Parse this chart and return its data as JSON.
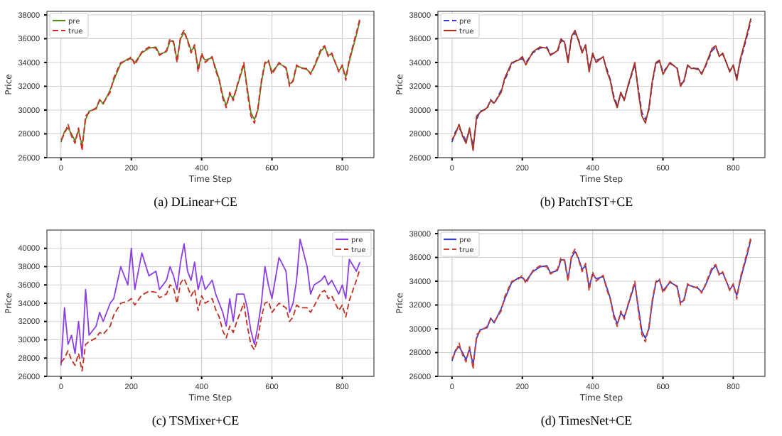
{
  "chart_data": [
    {
      "type": "line",
      "title": "(a) DLinear+CE",
      "xlabel": "Time Step",
      "ylabel": "Price",
      "grid": true,
      "legend": "top left",
      "xlim": [
        -40,
        890
      ],
      "ylim": [
        26000,
        38300
      ],
      "xticks": [
        0,
        200,
        400,
        600,
        800
      ],
      "yticks": [
        26000,
        28000,
        30000,
        32000,
        34000,
        36000,
        38000
      ],
      "x": [
        0,
        10,
        20,
        30,
        40,
        50,
        60,
        70,
        80,
        100,
        110,
        120,
        140,
        150,
        170,
        190,
        200,
        210,
        230,
        250,
        270,
        280,
        300,
        310,
        320,
        330,
        340,
        350,
        360,
        370,
        380,
        390,
        400,
        410,
        430,
        440,
        450,
        460,
        470,
        480,
        490,
        500,
        520,
        530,
        540,
        550,
        560,
        570,
        580,
        590,
        600,
        620,
        640,
        650,
        660,
        670,
        680,
        700,
        710,
        720,
        740,
        750,
        760,
        770,
        790,
        800,
        810,
        820,
        840,
        850
      ],
      "series": [
        {
          "name": "pre",
          "color": "#5a8a1e",
          "line_style": "solid",
          "values": [
            27300,
            28200,
            28500,
            28000,
            27400,
            28300,
            27000,
            29200,
            29900,
            30100,
            30900,
            30500,
            31700,
            32500,
            33900,
            34300,
            34300,
            34000,
            34800,
            35200,
            35300,
            34700,
            34900,
            35800,
            35800,
            34200,
            36000,
            36500,
            35900,
            35000,
            35300,
            33500,
            34600,
            34200,
            34400,
            33500,
            32600,
            31200,
            30400,
            31300,
            31000,
            31900,
            33800,
            31800,
            29800,
            29200,
            30000,
            32300,
            33900,
            34100,
            33200,
            33900,
            33600,
            32200,
            32400,
            33700,
            33600,
            33400,
            33100,
            33600,
            35000,
            35300,
            34600,
            34700,
            33300,
            33700,
            32800,
            34100,
            36300,
            37500
          ]
        },
        {
          "name": "true",
          "color": "#d62728",
          "line_style": "dashed",
          "values": [
            27500,
            28000,
            28800,
            27800,
            27200,
            28500,
            26600,
            29500,
            29800,
            30200,
            30800,
            30600,
            31500,
            32700,
            34000,
            34200,
            34500,
            33800,
            34900,
            35300,
            35200,
            34600,
            35000,
            36000,
            35700,
            34000,
            36200,
            36700,
            35800,
            34800,
            35500,
            33200,
            34800,
            34000,
            34500,
            33300,
            32500,
            31000,
            30200,
            31500,
            30800,
            32000,
            34000,
            31500,
            29500,
            28900,
            30200,
            32500,
            34000,
            34200,
            33000,
            34000,
            33500,
            32000,
            32500,
            33800,
            33500,
            33500,
            33000,
            33700,
            35200,
            35400,
            34500,
            34800,
            33200,
            33800,
            32500,
            34300,
            36500,
            37700
          ]
        }
      ]
    },
    {
      "type": "line",
      "title": "(b) PatchTST+CE",
      "xlabel": "Time Step",
      "ylabel": "Price",
      "grid": true,
      "legend": "top left",
      "xlim": [
        -40,
        890
      ],
      "ylim": [
        26000,
        38300
      ],
      "xticks": [
        0,
        200,
        400,
        600,
        800
      ],
      "yticks": [
        26000,
        28000,
        30000,
        32000,
        34000,
        36000,
        38000
      ],
      "x": [
        0,
        10,
        20,
        30,
        40,
        50,
        60,
        70,
        80,
        100,
        110,
        120,
        140,
        150,
        170,
        190,
        200,
        210,
        230,
        250,
        270,
        280,
        300,
        310,
        320,
        330,
        340,
        350,
        360,
        370,
        380,
        390,
        400,
        410,
        430,
        440,
        450,
        460,
        470,
        480,
        490,
        500,
        520,
        530,
        540,
        550,
        560,
        570,
        580,
        590,
        600,
        620,
        640,
        650,
        660,
        670,
        680,
        700,
        710,
        720,
        740,
        750,
        760,
        770,
        790,
        800,
        810,
        820,
        840,
        850
      ],
      "series": [
        {
          "name": "pre",
          "color": "#3a3ad0",
          "line_style": "dashed",
          "values": [
            27300,
            28200,
            28500,
            28000,
            27400,
            28300,
            27000,
            29200,
            29900,
            30100,
            30900,
            30500,
            31700,
            32500,
            33900,
            34300,
            34300,
            34000,
            34800,
            35200,
            35300,
            34700,
            34900,
            35800,
            35800,
            34200,
            36000,
            36500,
            35900,
            35000,
            35300,
            33500,
            34600,
            34200,
            34400,
            33500,
            32600,
            31200,
            30400,
            31300,
            31000,
            31900,
            33800,
            31800,
            29800,
            29200,
            30000,
            32300,
            33900,
            34100,
            33200,
            33900,
            33600,
            32200,
            32400,
            33700,
            33600,
            33400,
            33100,
            33600,
            35000,
            35300,
            34600,
            34700,
            33300,
            33700,
            32800,
            34100,
            36300,
            37500
          ]
        },
        {
          "name": "true",
          "color": "#a8321e",
          "line_style": "solid",
          "values": [
            27500,
            28000,
            28800,
            27800,
            27200,
            28500,
            26600,
            29500,
            29800,
            30200,
            30800,
            30600,
            31500,
            32700,
            34000,
            34200,
            34500,
            33800,
            34900,
            35300,
            35200,
            34600,
            35000,
            36000,
            35700,
            34000,
            36200,
            36700,
            35800,
            34800,
            35500,
            33200,
            34800,
            34000,
            34500,
            33300,
            32500,
            31000,
            30200,
            31500,
            30800,
            32000,
            34000,
            31500,
            29500,
            28900,
            30200,
            32500,
            34000,
            34200,
            33000,
            34000,
            33500,
            32000,
            32500,
            33800,
            33500,
            33500,
            33000,
            33700,
            35200,
            35400,
            34500,
            34800,
            33200,
            33800,
            32500,
            34300,
            36500,
            37700
          ]
        }
      ]
    },
    {
      "type": "line",
      "title": "(c) TSMixer+CE",
      "xlabel": "Time Step",
      "ylabel": "Price",
      "grid": true,
      "legend": "top right",
      "xlim": [
        -40,
        890
      ],
      "ylim": [
        26000,
        42000
      ],
      "xticks": [
        0,
        200,
        400,
        600,
        800
      ],
      "yticks": [
        26000,
        28000,
        30000,
        32000,
        34000,
        36000,
        38000,
        40000
      ],
      "x": [
        0,
        10,
        20,
        30,
        40,
        50,
        60,
        70,
        80,
        100,
        110,
        120,
        140,
        150,
        170,
        190,
        200,
        210,
        230,
        250,
        270,
        280,
        300,
        310,
        320,
        330,
        340,
        350,
        360,
        370,
        380,
        390,
        400,
        410,
        430,
        440,
        450,
        460,
        470,
        480,
        490,
        500,
        520,
        530,
        540,
        550,
        560,
        570,
        580,
        590,
        600,
        620,
        640,
        650,
        660,
        670,
        680,
        700,
        710,
        720,
        740,
        750,
        760,
        770,
        790,
        800,
        810,
        820,
        840,
        850
      ],
      "series": [
        {
          "name": "pre",
          "color": "#8a3ee8",
          "line_style": "solid",
          "values": [
            27200,
            33500,
            29500,
            30500,
            28500,
            32000,
            28000,
            35500,
            30500,
            31500,
            33000,
            32000,
            34000,
            34500,
            38000,
            36000,
            40000,
            35500,
            39500,
            37000,
            37500,
            35500,
            36500,
            38000,
            37000,
            35500,
            38500,
            40500,
            37500,
            36500,
            38500,
            35500,
            37000,
            35500,
            36500,
            35000,
            34000,
            33000,
            31500,
            34500,
            32000,
            35000,
            35000,
            33500,
            31000,
            29500,
            31500,
            34000,
            38000,
            36000,
            34500,
            39000,
            37500,
            33000,
            34000,
            36500,
            41000,
            38000,
            35000,
            36000,
            36500,
            37000,
            36000,
            36500,
            35000,
            36000,
            34500,
            38800,
            37500,
            38500
          ]
        },
        {
          "name": "true",
          "color": "#c0301e",
          "line_style": "dashed",
          "values": [
            27500,
            28000,
            28800,
            27800,
            27200,
            28500,
            26600,
            29500,
            29800,
            30200,
            30800,
            30600,
            31500,
            32700,
            34000,
            34200,
            34500,
            33800,
            34900,
            35300,
            35200,
            34600,
            35000,
            36000,
            35700,
            34000,
            36200,
            36700,
            35800,
            34800,
            35500,
            33200,
            34800,
            34000,
            34500,
            33300,
            32500,
            31000,
            30200,
            31500,
            30800,
            32000,
            34000,
            31500,
            29500,
            28900,
            30200,
            32500,
            34000,
            34200,
            33000,
            34000,
            33500,
            32000,
            32500,
            33800,
            33500,
            33500,
            33000,
            33700,
            35200,
            35400,
            34500,
            34800,
            33200,
            33800,
            32500,
            34300,
            36500,
            37700
          ]
        }
      ]
    },
    {
      "type": "line",
      "title": "(d) TimesNet+CE",
      "xlabel": "Time Step",
      "ylabel": "Price",
      "grid": true,
      "legend": "top left",
      "xlim": [
        -40,
        890
      ],
      "ylim": [
        26000,
        38300
      ],
      "xticks": [
        0,
        200,
        400,
        600,
        800
      ],
      "yticks": [
        26000,
        28000,
        30000,
        32000,
        34000,
        36000,
        38000
      ],
      "x": [
        0,
        10,
        20,
        30,
        40,
        50,
        60,
        70,
        80,
        100,
        110,
        120,
        140,
        150,
        170,
        190,
        200,
        210,
        230,
        250,
        270,
        280,
        300,
        310,
        320,
        330,
        340,
        350,
        360,
        370,
        380,
        390,
        400,
        410,
        430,
        440,
        450,
        460,
        470,
        480,
        490,
        500,
        520,
        530,
        540,
        550,
        560,
        570,
        580,
        590,
        600,
        620,
        640,
        650,
        660,
        670,
        680,
        700,
        710,
        720,
        740,
        750,
        760,
        770,
        790,
        800,
        810,
        820,
        840,
        850
      ],
      "series": [
        {
          "name": "pre",
          "color": "#3a3ad0",
          "line_style": "solid",
          "values": [
            27300,
            28200,
            28500,
            28000,
            27400,
            28300,
            27000,
            29200,
            29900,
            30100,
            30900,
            30500,
            31700,
            32500,
            33900,
            34300,
            34300,
            34000,
            34800,
            35200,
            35300,
            34700,
            34900,
            35800,
            35800,
            34200,
            36000,
            36500,
            35900,
            35000,
            35300,
            33500,
            34600,
            34200,
            34400,
            33500,
            32600,
            31200,
            30400,
            31300,
            31000,
            31900,
            33800,
            31800,
            29800,
            29200,
            30000,
            32300,
            33900,
            34100,
            33200,
            33900,
            33600,
            32200,
            32400,
            33700,
            33600,
            33400,
            33100,
            33600,
            35000,
            35300,
            34600,
            34700,
            33300,
            33700,
            32800,
            34100,
            36300,
            37500
          ]
        },
        {
          "name": "true",
          "color": "#d0402a",
          "line_style": "dashed",
          "values": [
            27500,
            28000,
            28800,
            27800,
            27200,
            28500,
            26600,
            29500,
            29800,
            30200,
            30800,
            30600,
            31500,
            32700,
            34000,
            34200,
            34500,
            33800,
            34900,
            35300,
            35200,
            34600,
            35000,
            36000,
            35700,
            34000,
            36200,
            36700,
            35800,
            34800,
            35500,
            33200,
            34800,
            34000,
            34500,
            33300,
            32500,
            31000,
            30200,
            31500,
            30800,
            32000,
            34000,
            31500,
            29500,
            28900,
            30200,
            32500,
            34000,
            34200,
            33000,
            34000,
            33500,
            32000,
            32500,
            33800,
            33500,
            33500,
            33000,
            33700,
            35200,
            35400,
            34500,
            34800,
            33200,
            33800,
            32500,
            34300,
            36500,
            37700
          ]
        }
      ]
    }
  ]
}
